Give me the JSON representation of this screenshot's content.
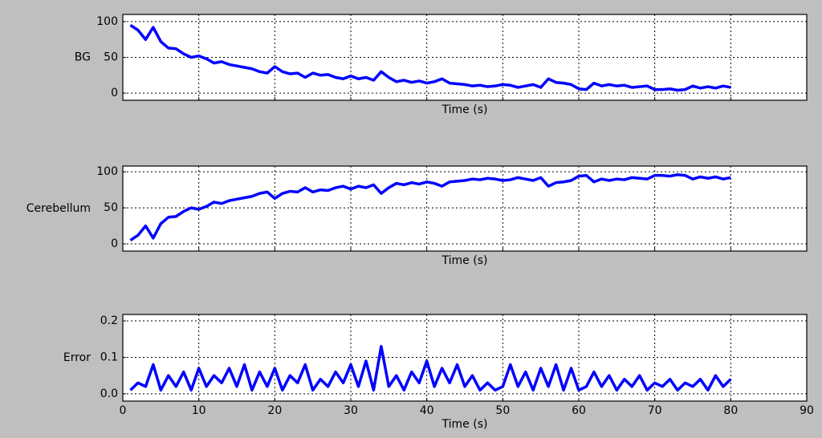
{
  "chart_data": [
    {
      "type": "line",
      "ylabel": "BG",
      "xlabel": "Time (s)",
      "grid": true,
      "show_xtick_labels": false,
      "xlim": [
        0,
        90
      ],
      "xticks": [
        0,
        10,
        20,
        30,
        40,
        50,
        60,
        70,
        80,
        90
      ],
      "ylim": [
        -10,
        110
      ],
      "yticks": [
        0,
        50,
        100
      ],
      "x": [
        1,
        2,
        3,
        4,
        5,
        6,
        7,
        8,
        9,
        10,
        11,
        12,
        13,
        14,
        15,
        16,
        17,
        18,
        19,
        20,
        21,
        22,
        23,
        24,
        25,
        26,
        27,
        28,
        29,
        30,
        31,
        32,
        33,
        34,
        35,
        36,
        37,
        38,
        39,
        40,
        41,
        42,
        43,
        44,
        45,
        46,
        47,
        48,
        49,
        50,
        51,
        52,
        53,
        54,
        55,
        56,
        57,
        58,
        59,
        60,
        61,
        62,
        63,
        64,
        65,
        66,
        67,
        68,
        69,
        70,
        71,
        72,
        73,
        74,
        75,
        76,
        77,
        78,
        79,
        80
      ],
      "series": [
        {
          "color": "#0000ff",
          "values": [
            95,
            88,
            75,
            92,
            72,
            63,
            62,
            55,
            50,
            52,
            48,
            42,
            44,
            40,
            38,
            36,
            34,
            30,
            28,
            37,
            30,
            27,
            28,
            22,
            28,
            25,
            26,
            22,
            20,
            24,
            20,
            22,
            18,
            30,
            22,
            16,
            18,
            15,
            17,
            14,
            16,
            20,
            14,
            13,
            12,
            10,
            11,
            9,
            10,
            12,
            11,
            8,
            10,
            12,
            8,
            20,
            15,
            14,
            12,
            6,
            5,
            14,
            10,
            12,
            10,
            11,
            8,
            9,
            10,
            5,
            5,
            6,
            4,
            5,
            10,
            7,
            9,
            7,
            10,
            8
          ]
        }
      ]
    },
    {
      "type": "line",
      "ylabel": "Cerebellum",
      "xlabel": "Time (s)",
      "grid": true,
      "show_xtick_labels": false,
      "xlim": [
        0,
        90
      ],
      "xticks": [
        0,
        10,
        20,
        30,
        40,
        50,
        60,
        70,
        80,
        90
      ],
      "ylim": [
        -10,
        108
      ],
      "yticks": [
        0,
        50,
        100
      ],
      "x": [
        1,
        2,
        3,
        4,
        5,
        6,
        7,
        8,
        9,
        10,
        11,
        12,
        13,
        14,
        15,
        16,
        17,
        18,
        19,
        20,
        21,
        22,
        23,
        24,
        25,
        26,
        27,
        28,
        29,
        30,
        31,
        32,
        33,
        34,
        35,
        36,
        37,
        38,
        39,
        40,
        41,
        42,
        43,
        44,
        45,
        46,
        47,
        48,
        49,
        50,
        51,
        52,
        53,
        54,
        55,
        56,
        57,
        58,
        59,
        60,
        61,
        62,
        63,
        64,
        65,
        66,
        67,
        68,
        69,
        70,
        71,
        72,
        73,
        74,
        75,
        76,
        77,
        78,
        79,
        80
      ],
      "series": [
        {
          "color": "#0000ff",
          "values": [
            5,
            12,
            25,
            8,
            28,
            37,
            38,
            45,
            50,
            48,
            52,
            58,
            56,
            60,
            62,
            64,
            66,
            70,
            72,
            63,
            70,
            73,
            72,
            78,
            72,
            75,
            74,
            78,
            80,
            76,
            80,
            78,
            82,
            70,
            78,
            84,
            82,
            85,
            83,
            86,
            84,
            80,
            86,
            87,
            88,
            90,
            89,
            91,
            90,
            88,
            89,
            92,
            90,
            88,
            92,
            80,
            85,
            86,
            88,
            94,
            95,
            86,
            90,
            88,
            90,
            89,
            92,
            91,
            90,
            95,
            95,
            94,
            96,
            95,
            90,
            93,
            91,
            93,
            90,
            92
          ]
        }
      ]
    },
    {
      "type": "line",
      "ylabel": "Error",
      "xlabel": "Time (s)",
      "grid": true,
      "show_xtick_labels": true,
      "xlim": [
        0,
        90
      ],
      "xticks": [
        0,
        10,
        20,
        30,
        40,
        50,
        60,
        70,
        80,
        90
      ],
      "ylim": [
        -0.02,
        0.2176
      ],
      "yticks": [
        {
          "value": 0,
          "label": "0.0"
        },
        {
          "value": 0.1,
          "label": "0.1"
        },
        {
          "value": 0.2,
          "label": "0.2"
        }
      ],
      "x": [
        1,
        2,
        3,
        4,
        5,
        6,
        7,
        8,
        9,
        10,
        11,
        12,
        13,
        14,
        15,
        16,
        17,
        18,
        19,
        20,
        21,
        22,
        23,
        24,
        25,
        26,
        27,
        28,
        29,
        30,
        31,
        32,
        33,
        34,
        35,
        36,
        37,
        38,
        39,
        40,
        41,
        42,
        43,
        44,
        45,
        46,
        47,
        48,
        49,
        50,
        51,
        52,
        53,
        54,
        55,
        56,
        57,
        58,
        59,
        60,
        61,
        62,
        63,
        64,
        65,
        66,
        67,
        68,
        69,
        70,
        71,
        72,
        73,
        74,
        75,
        76,
        77,
        78,
        79,
        80
      ],
      "series": [
        {
          "color": "#0000ff",
          "values": [
            0.01,
            0.03,
            0.02,
            0.08,
            0.01,
            0.05,
            0.02,
            0.06,
            0.01,
            0.07,
            0.02,
            0.05,
            0.03,
            0.07,
            0.02,
            0.08,
            0.01,
            0.06,
            0.02,
            0.07,
            0.01,
            0.05,
            0.03,
            0.08,
            0.01,
            0.04,
            0.02,
            0.06,
            0.03,
            0.08,
            0.02,
            0.09,
            0.01,
            0.13,
            0.02,
            0.05,
            0.01,
            0.06,
            0.03,
            0.09,
            0.02,
            0.07,
            0.03,
            0.08,
            0.02,
            0.05,
            0.01,
            0.03,
            0.01,
            0.02,
            0.08,
            0.02,
            0.06,
            0.01,
            0.07,
            0.02,
            0.08,
            0.01,
            0.07,
            0.01,
            0.02,
            0.06,
            0.02,
            0.05,
            0.01,
            0.04,
            0.02,
            0.05,
            0.01,
            0.03,
            0.02,
            0.04,
            0.01,
            0.03,
            0.02,
            0.04,
            0.01,
            0.05,
            0.02,
            0.04
          ]
        }
      ]
    }
  ]
}
